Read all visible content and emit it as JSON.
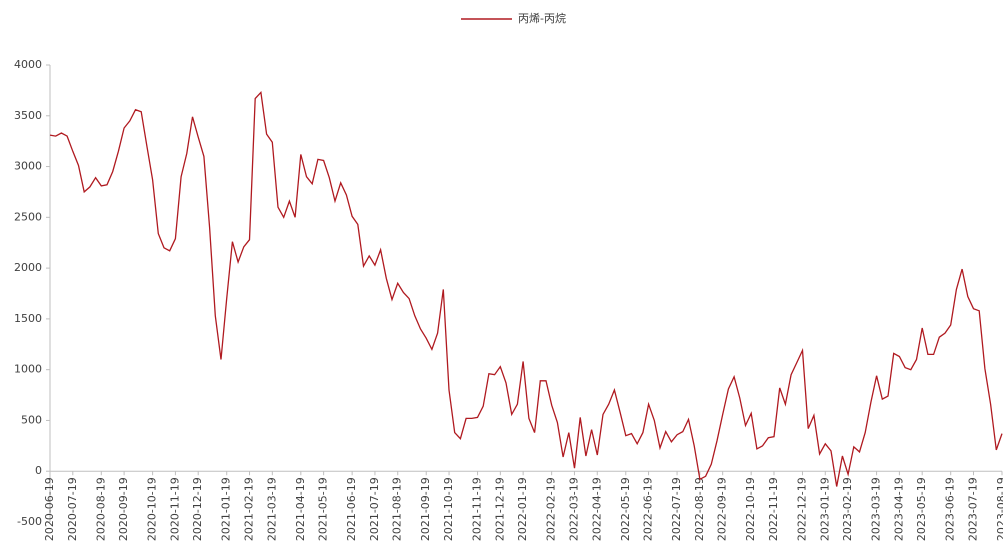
{
  "chart_data": {
    "type": "line",
    "categories": [
      "2020-06-19",
      null,
      null,
      null,
      "2020-07-19",
      null,
      null,
      null,
      null,
      "2020-08-19",
      null,
      null,
      null,
      "2020-09-19",
      null,
      null,
      null,
      null,
      "2020-10-19",
      null,
      null,
      null,
      "2020-11-19",
      null,
      null,
      null,
      "2020-12-19",
      null,
      null,
      null,
      null,
      "2021-01-19",
      null,
      null,
      null,
      "2021-02-19",
      null,
      null,
      null,
      "2021-03-19",
      null,
      null,
      null,
      null,
      "2021-04-19",
      null,
      null,
      null,
      "2021-05-19",
      null,
      null,
      null,
      null,
      "2021-06-19",
      null,
      null,
      null,
      "2021-07-19",
      null,
      null,
      null,
      "2021-08-19",
      null,
      null,
      null,
      null,
      "2021-09-19",
      null,
      null,
      null,
      "2021-10-19",
      null,
      null,
      null,
      null,
      "2021-11-19",
      null,
      null,
      null,
      "2021-12-19",
      null,
      null,
      null,
      "2022-01-19",
      null,
      null,
      null,
      null,
      "2022-02-19",
      null,
      null,
      null,
      "2022-03-19",
      null,
      null,
      null,
      "2022-04-19",
      null,
      null,
      null,
      null,
      "2022-05-19",
      null,
      null,
      null,
      "2022-06-19",
      null,
      null,
      null,
      null,
      "2022-07-19",
      null,
      null,
      null,
      "2022-08-19",
      null,
      null,
      null,
      "2022-09-19",
      null,
      null,
      null,
      null,
      "2022-10-19",
      null,
      null,
      null,
      "2022-11-19",
      null,
      null,
      null,
      null,
      "2022-12-19",
      null,
      null,
      null,
      "2023-01-19",
      null,
      null,
      null,
      "2023-02-19",
      null,
      null,
      null,
      null,
      "2023-03-19",
      null,
      null,
      null,
      "2023-04-19",
      null,
      null,
      null,
      "2023-05-19",
      null,
      null,
      null,
      null,
      "2023-06-19",
      null,
      null,
      null,
      "2023-07-19",
      null,
      null,
      null,
      null,
      "2023-08-19"
    ],
    "series": [
      {
        "name": "丙烯-丙烷",
        "color": "#b01a20",
        "values": [
          3310,
          3300,
          3330,
          3300,
          3150,
          3010,
          2750,
          2800,
          2890,
          2810,
          2820,
          2950,
          3150,
          3380,
          3450,
          3560,
          3540,
          3200,
          2870,
          2340,
          2200,
          2170,
          2290,
          2900,
          3130,
          3490,
          3290,
          3100,
          2400,
          1530,
          1100,
          1700,
          2260,
          2060,
          2210,
          2280,
          3670,
          3730,
          3320,
          3240,
          2600,
          2500,
          2660,
          2500,
          3120,
          2900,
          2830,
          3070,
          3060,
          2890,
          2660,
          2840,
          2720,
          2510,
          2430,
          2020,
          2120,
          2030,
          2180,
          1900,
          1690,
          1850,
          1760,
          1700,
          1530,
          1400,
          1310,
          1200,
          1360,
          1790,
          800,
          380,
          320,
          520,
          520,
          530,
          640,
          960,
          950,
          1030,
          870,
          560,
          660,
          1080,
          520,
          380,
          890,
          890,
          650,
          480,
          140,
          380,
          30,
          530,
          150,
          410,
          160,
          560,
          660,
          800,
          580,
          350,
          370,
          270,
          380,
          660,
          500,
          230,
          390,
          290,
          360,
          390,
          510,
          250,
          -80,
          -50,
          70,
          300,
          560,
          810,
          930,
          720,
          450,
          570,
          220,
          250,
          330,
          340,
          820,
          660,
          950,
          1070,
          1190,
          420,
          550,
          170,
          270,
          200,
          -150,
          150,
          -30,
          240,
          190,
          380,
          680,
          940,
          710,
          740,
          1160,
          1130,
          1020,
          1000,
          1100,
          1410,
          1150,
          1150,
          1320,
          1360,
          1440,
          1790,
          1990,
          1720,
          1600,
          1580,
          1010,
          660,
          210,
          370
        ]
      }
    ],
    "ylim": [
      -500,
      4000
    ],
    "yticks": [
      -500,
      0,
      500,
      1000,
      1500,
      2000,
      2500,
      3000,
      3500,
      4000
    ],
    "legend": "top"
  }
}
